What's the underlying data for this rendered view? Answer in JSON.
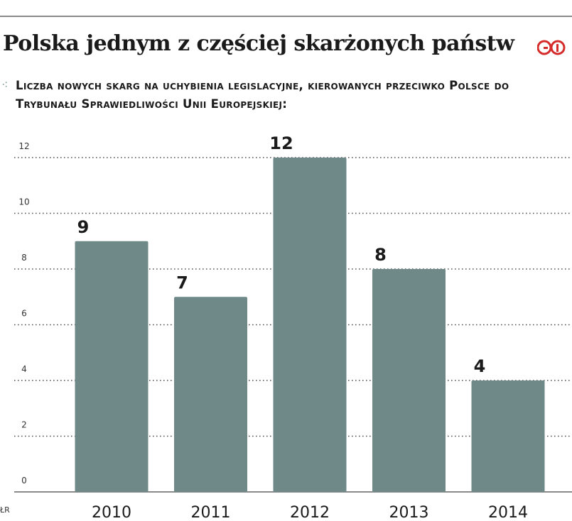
{
  "header": {
    "title": "Polska jednym z częściej skarżonych państw",
    "logo_text": "GP",
    "subtitle_icon": "grid-dots-icon",
    "subtitle": "Liczba nowych skarg na uchybienia legislacyjne, kierowanych przeciwko Polsce do Trybunału Sprawiedliwości Unii Europejskiej:"
  },
  "source": "ŁR",
  "colors": {
    "bar": "#6f8888",
    "gridline": "#555555",
    "logo": "#d62b2b",
    "text": "#1a1a1a"
  },
  "chart_data": {
    "type": "bar",
    "categories": [
      "2010",
      "2011",
      "2012",
      "2013",
      "2014"
    ],
    "values": [
      9,
      7,
      12,
      8,
      4
    ],
    "data_labels": [
      "9",
      "7",
      "12",
      "8",
      "4"
    ],
    "ylim": [
      0,
      12
    ],
    "yticks": [
      0,
      2,
      4,
      6,
      8,
      10,
      12
    ],
    "ytick_labels": [
      "0",
      "2",
      "4",
      "6",
      "8",
      "10",
      "12"
    ],
    "grid": true,
    "legend": "none"
  }
}
